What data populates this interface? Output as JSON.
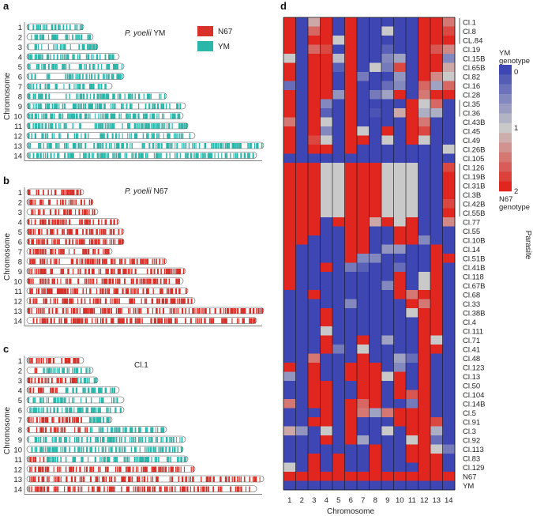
{
  "colors": {
    "n67": "#d9312a",
    "ym": "#2bb6aa",
    "heat_low": "#3d46b2",
    "heat_mid": "#c9c9c9",
    "heat_high": "#e0261f"
  },
  "panels": {
    "a": {
      "letter": "a",
      "title_italic": "P. yoelii",
      "title_rest": " YM"
    },
    "b": {
      "letter": "b",
      "title_italic": "P. yoelii",
      "title_rest": " N67"
    },
    "c": {
      "letter": "c",
      "title_rest": "Cl.1"
    },
    "d": {
      "letter": "d"
    }
  },
  "legend": {
    "n67_label": "N67",
    "ym_label": "YM"
  },
  "axis_labels": {
    "chromosome": "Chromosome",
    "parasite": "Parasite"
  },
  "colorbar": {
    "top_label": "YM",
    "top_label2": "genotype",
    "bottom_label": "N67",
    "bottom_label2": "genotype",
    "ticks": [
      "0",
      "1",
      "2"
    ]
  },
  "chart_data": {
    "type": "heatmap",
    "chromosomes": [
      1,
      2,
      3,
      4,
      5,
      6,
      7,
      8,
      9,
      10,
      11,
      12,
      13,
      14
    ],
    "chromosome_lengths_rel": [
      0.24,
      0.28,
      0.3,
      0.39,
      0.41,
      0.41,
      0.36,
      0.59,
      0.67,
      0.66,
      0.68,
      0.71,
      1.0,
      0.97
    ],
    "panel_c_n67_fraction": [
      1,
      0.2,
      0.7,
      0.35,
      0,
      0,
      0.7,
      0.45,
      0,
      0,
      0.1,
      1,
      1,
      1
    ],
    "parasites": [
      "Cl.1",
      "Cl.8",
      "CL.84",
      "Cl.19",
      "Cl.15B",
      "Cl.65B",
      "Cl.82",
      "Cl.16",
      "Cl.28",
      "Cl.35",
      "Cl.36",
      "Cl.43B",
      "Cl.45",
      "Cl.49",
      "Cl.26B",
      "Cl.105",
      "Cl.126",
      "Cl.19B",
      "Cl.31B",
      "Cl.3B",
      "Cl.42B",
      "Cl.55B",
      "Cl.77",
      "Cl.55",
      "Cl.10B",
      "Cl.14",
      "Cl.51B",
      "Cl.41B",
      "Cl.118",
      "Cl.67B",
      "Cl.68",
      "Cl.33",
      "Cl.38B",
      "Cl.4",
      "Cl.111",
      "Cl.71",
      "Cl.41",
      "Cl.48",
      "Cl.123",
      "Cl.13",
      "Cl.50",
      "Cl.104",
      "Cl.14B",
      "Cl.5",
      "Cl.91",
      "Cl.3",
      "Cl.92",
      "Cl.113",
      "Cl.83",
      "Cl.129",
      "N67",
      "YM"
    ],
    "values": [
      [
        2,
        0,
        1.2,
        2,
        0,
        2,
        0,
        0,
        0,
        0,
        0,
        2,
        2,
        1.5
      ],
      [
        2,
        0,
        1.6,
        2,
        0,
        2,
        0,
        0,
        1,
        0,
        0,
        2,
        2,
        1.8
      ],
      [
        2,
        0,
        2,
        2,
        1,
        2,
        0,
        0,
        0,
        0,
        0,
        2,
        2,
        2
      ],
      [
        2,
        0,
        1.6,
        1.8,
        0,
        2,
        0,
        0,
        0.2,
        0,
        0,
        2,
        1.7,
        1.4
      ],
      [
        1,
        0,
        2,
        2,
        0.9,
        2,
        0,
        0,
        0.5,
        0.7,
        0,
        2,
        2,
        0.5
      ],
      [
        2,
        0,
        2,
        2,
        0.2,
        2,
        0,
        1,
        0.4,
        1.8,
        0,
        2,
        2,
        1.2
      ],
      [
        2,
        0,
        2,
        2,
        0,
        2,
        0.4,
        0,
        0,
        0.6,
        0,
        2,
        1.4,
        1
      ],
      [
        0.3,
        0,
        2,
        2,
        0,
        2,
        0,
        0,
        0.3,
        0.5,
        0,
        1.6,
        0.7,
        1.6
      ],
      [
        2,
        0,
        2,
        2,
        0.6,
        2,
        0,
        0.4,
        0.7,
        2,
        0,
        1.5,
        2,
        2
      ],
      [
        2,
        0,
        2,
        0.5,
        0,
        2,
        0,
        0,
        0,
        0,
        2,
        1,
        1.6,
        0
      ],
      [
        2,
        0,
        2,
        0.2,
        0,
        2,
        0,
        0.1,
        0,
        1.2,
        2,
        0.8,
        0.8,
        0
      ],
      [
        1.5,
        0,
        2,
        1,
        0,
        2,
        0,
        0,
        0,
        0,
        2,
        1.5,
        0,
        0
      ],
      [
        2,
        0,
        2,
        0.5,
        0,
        2,
        1,
        0,
        2,
        0,
        2,
        1.8,
        0,
        0
      ],
      [
        2,
        0,
        1.8,
        1,
        0,
        2,
        2,
        0,
        1,
        0,
        2,
        1,
        0,
        0
      ],
      [
        2,
        0,
        2,
        2,
        0,
        2,
        0,
        0,
        0,
        0,
        0,
        0,
        0,
        1
      ],
      [
        0,
        0,
        0,
        0,
        0,
        0,
        0,
        0,
        0,
        0,
        0,
        0,
        0,
        0
      ],
      [
        2,
        2,
        2,
        1,
        1,
        2,
        2,
        2,
        1,
        1,
        1,
        0,
        0,
        1.8
      ],
      [
        2,
        2,
        2,
        1,
        1,
        2,
        2,
        2,
        1,
        1,
        1,
        0,
        0,
        2
      ],
      [
        2,
        2,
        2,
        1,
        1,
        2,
        2,
        2,
        1,
        1,
        1,
        0,
        0,
        2
      ],
      [
        2,
        2,
        2,
        1,
        1,
        2,
        2,
        2,
        1,
        1,
        1,
        0,
        0,
        2
      ],
      [
        2,
        2,
        2,
        1,
        1,
        2,
        2,
        2,
        1,
        1,
        1,
        0,
        0,
        1.8
      ],
      [
        2,
        2,
        2,
        1,
        1,
        2,
        2,
        2,
        1,
        1,
        1,
        0,
        0,
        2
      ],
      [
        2,
        2,
        2,
        0,
        2,
        2,
        2,
        1.2,
        2,
        1,
        2,
        0,
        0,
        1.4
      ],
      [
        2,
        2,
        2,
        0,
        0,
        2,
        2,
        0,
        0,
        2,
        2,
        0,
        0,
        0
      ],
      [
        2,
        2,
        0,
        0,
        0,
        2,
        2,
        0,
        0,
        2,
        2,
        0.5,
        0,
        0
      ],
      [
        2,
        0,
        0,
        0,
        0,
        2,
        2,
        0,
        0.6,
        0.6,
        0,
        0,
        2,
        0
      ],
      [
        2,
        0,
        0,
        0,
        0,
        2,
        0.5,
        0.5,
        0,
        0,
        0,
        0,
        2,
        2
      ],
      [
        2,
        0,
        0,
        2,
        0,
        0.4,
        0.2,
        0,
        0,
        0.3,
        0,
        0,
        2,
        0
      ],
      [
        2,
        0,
        0,
        0,
        0,
        0,
        0,
        0,
        0,
        2,
        0,
        1,
        2,
        0
      ],
      [
        2,
        0,
        0,
        0,
        0,
        0,
        0,
        0,
        0.5,
        2,
        0,
        1,
        2,
        0
      ],
      [
        0,
        0,
        2,
        0,
        0,
        0,
        0,
        0,
        0,
        2,
        1.5,
        2,
        2,
        0
      ],
      [
        0,
        0,
        0,
        0,
        0,
        0.5,
        0,
        0,
        0,
        0,
        2,
        1.5,
        2,
        0
      ],
      [
        0,
        0,
        0,
        2,
        0,
        0,
        0,
        0,
        0,
        0,
        1,
        2,
        2,
        0
      ],
      [
        0,
        0,
        0,
        2,
        0,
        0,
        0,
        0,
        0,
        0,
        0,
        2,
        2,
        0
      ],
      [
        0,
        0,
        0,
        1,
        0,
        0,
        0,
        0,
        0,
        0,
        0,
        2,
        2,
        0
      ],
      [
        0,
        0,
        0,
        2,
        0,
        0,
        2,
        0,
        0.7,
        0,
        0,
        2,
        1,
        0
      ],
      [
        0,
        0,
        0,
        2,
        0.4,
        0,
        1,
        0,
        0,
        0,
        0,
        2,
        2,
        0
      ],
      [
        0,
        0,
        1.5,
        0,
        0,
        0,
        2,
        0,
        0,
        0.7,
        0.3,
        2,
        0,
        0
      ],
      [
        2,
        0,
        2,
        0,
        0,
        2,
        2,
        2,
        0,
        0.5,
        0,
        2,
        0,
        0
      ],
      [
        0.6,
        0,
        2,
        0,
        0,
        2,
        2,
        2,
        1,
        2,
        0,
        2,
        0,
        0
      ],
      [
        0,
        0,
        2,
        2,
        0,
        0,
        2,
        2,
        0,
        2,
        0,
        2,
        0,
        0
      ],
      [
        0,
        0,
        2,
        2,
        0,
        0,
        2,
        2,
        0,
        2,
        1.7,
        2,
        0,
        0
      ],
      [
        1.5,
        0,
        2,
        2,
        0,
        2,
        1.6,
        2,
        0,
        0,
        0.4,
        2,
        0,
        0
      ],
      [
        0,
        0,
        0,
        2,
        0,
        2,
        1.5,
        0.7,
        1.5,
        2,
        2,
        2,
        0,
        0
      ],
      [
        0,
        0,
        2,
        2,
        0,
        2,
        0,
        0,
        0,
        2,
        2,
        2,
        1.8,
        0
      ],
      [
        1.2,
        0.6,
        0,
        1,
        0,
        2,
        0,
        0,
        1,
        0,
        2,
        2,
        0.8,
        0
      ],
      [
        0,
        0,
        0,
        2,
        0,
        2,
        0.7,
        0,
        0,
        0,
        1,
        2,
        0.3,
        0
      ],
      [
        0,
        0,
        0,
        0,
        0,
        0,
        0,
        2,
        0,
        0,
        2,
        2,
        1,
        0.4
      ],
      [
        0,
        0,
        2,
        0,
        2,
        0,
        0,
        2,
        0,
        0,
        2,
        2,
        2,
        0
      ],
      [
        1,
        0,
        2,
        0,
        2,
        0,
        0,
        2,
        0,
        0,
        0,
        2,
        2,
        0
      ],
      [
        2,
        2,
        2,
        2,
        2,
        2,
        2,
        2,
        2,
        2,
        2,
        2,
        2,
        2
      ],
      [
        0,
        0,
        0,
        0,
        0,
        0,
        0,
        0,
        0,
        0,
        0,
        0,
        0,
        0
      ]
    ],
    "groups": [
      [
        0,
        2
      ],
      [
        9,
        10
      ],
      [
        16,
        21
      ]
    ]
  }
}
